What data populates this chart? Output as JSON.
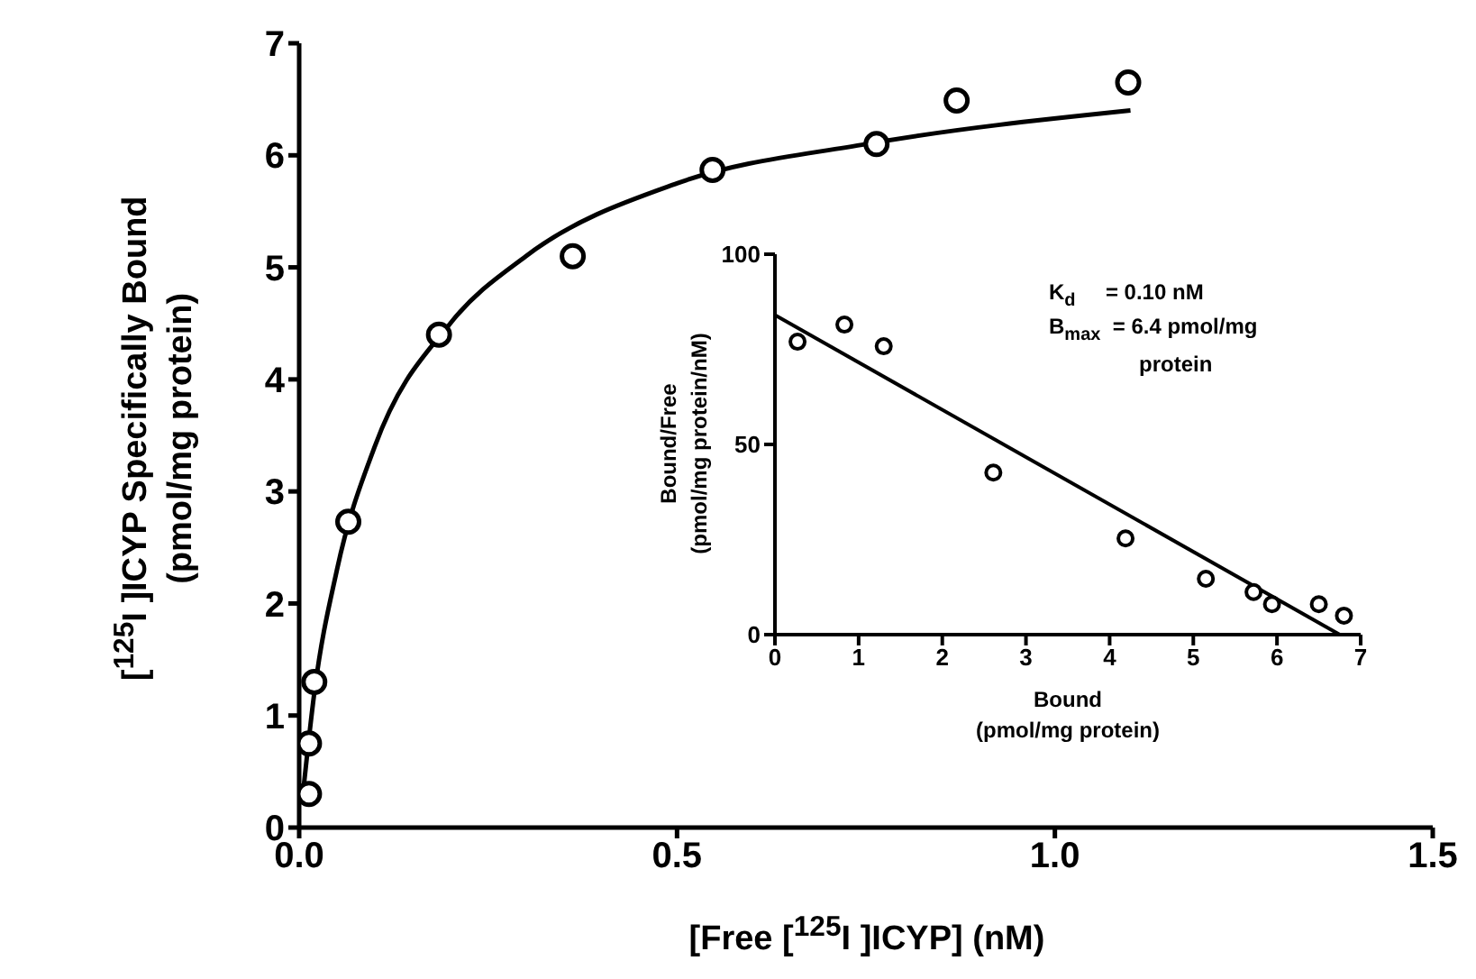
{
  "chart_data": [
    {
      "type": "scatter",
      "xlabel": "[Free [$^{125}$I ]ICYP] (nM)",
      "ylabel": "[$^{125}$I ]ICYP Specifically Bound\n(pmol/mg protein)",
      "xlim": [
        0,
        1.5
      ],
      "xticks": [
        {
          "value": 0,
          "label": "0.0"
        },
        0.5,
        {
          "value": 1,
          "label": "1.0"
        },
        1.5
      ],
      "ylim": [
        0,
        7
      ],
      "yticks": [
        0,
        1,
        2,
        3,
        4,
        5,
        6,
        7
      ],
      "series": [
        {
          "marker": "circle",
          "color": "#000000",
          "x": [
            0.013,
            0.013,
            0.02,
            0.065,
            0.185,
            0.362,
            0.547,
            0.764,
            0.87,
            1.097
          ],
          "values": [
            0.3,
            0.75,
            1.3,
            2.73,
            4.4,
            5.1,
            5.87,
            6.1,
            6.49,
            6.65
          ]
        },
        {
          "type": "line",
          "marker": "none",
          "color": "#000000",
          "x": [
            0.005,
            0.02,
            0.05,
            0.1,
            0.2,
            0.3,
            0.5,
            0.75,
            1.1
          ],
          "values": [
            0.3,
            1.2,
            2.3,
            3.4,
            4.5,
            5.1,
            5.75,
            6.1,
            6.4
          ]
        }
      ]
    },
    {
      "type": "scatter",
      "xlabel": "Bound\n(pmol/mg protein)",
      "ylabel": "Bound/Free\n(pmol/mg protein/nM)",
      "xlim": [
        0,
        7
      ],
      "xticks": [
        0,
        1,
        2,
        3,
        4,
        5,
        6,
        7
      ],
      "ylim": [
        0,
        100
      ],
      "yticks": [
        0,
        50,
        100
      ],
      "annotations": [
        "K$_{d}$     = 0.10 nM",
        "B$_{max}$  = 6.4 pmol/mg\n               protein"
      ],
      "series": [
        {
          "marker": "circle",
          "color": "#000000",
          "x": [
            0.27,
            0.83,
            1.3,
            2.61,
            4.19,
            5.15,
            5.72,
            5.94,
            6.5,
            6.8
          ],
          "values": [
            77,
            81.5,
            75.8,
            42.6,
            25.3,
            14.7,
            11.2,
            8,
            8,
            5
          ]
        },
        {
          "type": "line",
          "marker": "none",
          "color": "#000000",
          "x": [
            0,
            6.75
          ],
          "values": [
            84,
            0
          ]
        }
      ]
    }
  ]
}
